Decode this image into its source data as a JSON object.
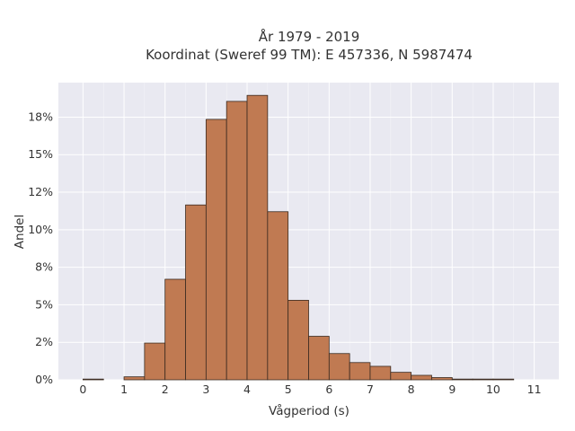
{
  "chart_data": {
    "type": "bar",
    "title_lines": [
      "År 1979 - 2019",
      "Koordinat (Sweref 99 TM): E 457336, N 5987474"
    ],
    "xlabel": "Vågperiod (s)",
    "ylabel": "Andel",
    "x_ticks": [
      0,
      1,
      2,
      3,
      4,
      5,
      6,
      7,
      8,
      9,
      10,
      11
    ],
    "x_tick_labels": [
      "0",
      "1",
      "2",
      "3",
      "4",
      "5",
      "6",
      "7",
      "8",
      "9",
      "10",
      "11"
    ],
    "xlim": [
      -0.6,
      11.6
    ],
    "y_ticks": [
      0,
      2.5,
      5,
      7.5,
      10,
      12.5,
      15,
      17.5
    ],
    "y_tick_labels": [
      "0%",
      "2%",
      "5%",
      "8%",
      "10%",
      "12%",
      "15%",
      "18%"
    ],
    "ylim": [
      0,
      19.8
    ],
    "bin_width": 0.5,
    "bins": [
      {
        "start": 0.0,
        "value": 0.05
      },
      {
        "start": 0.5,
        "value": 0.0
      },
      {
        "start": 1.0,
        "value": 0.2
      },
      {
        "start": 1.5,
        "value": 2.45
      },
      {
        "start": 2.0,
        "value": 6.7
      },
      {
        "start": 2.5,
        "value": 11.65
      },
      {
        "start": 3.0,
        "value": 17.35
      },
      {
        "start": 3.5,
        "value": 18.55
      },
      {
        "start": 4.0,
        "value": 18.95
      },
      {
        "start": 4.5,
        "value": 11.2
      },
      {
        "start": 5.0,
        "value": 5.3
      },
      {
        "start": 5.5,
        "value": 2.9
      },
      {
        "start": 6.0,
        "value": 1.75
      },
      {
        "start": 6.5,
        "value": 1.15
      },
      {
        "start": 7.0,
        "value": 0.9
      },
      {
        "start": 7.5,
        "value": 0.5
      },
      {
        "start": 8.0,
        "value": 0.3
      },
      {
        "start": 8.5,
        "value": 0.15
      },
      {
        "start": 9.0,
        "value": 0.05
      },
      {
        "start": 9.5,
        "value": 0.05
      },
      {
        "start": 10.0,
        "value": 0.05
      }
    ],
    "grid": true,
    "colors": {
      "bar_fill": "#c07a52",
      "bar_edge": "#3a2a20",
      "plot_bg": "#e9e9f1",
      "grid": "#ffffff"
    }
  }
}
